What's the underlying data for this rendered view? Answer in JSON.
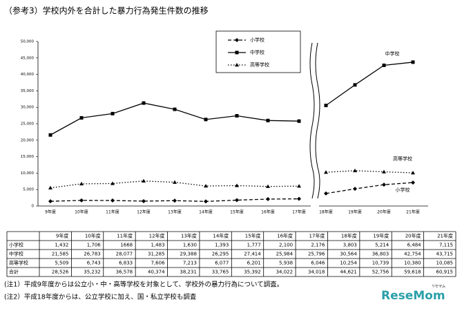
{
  "chart_data": {
    "type": "line",
    "title": "（参考3）学校内外を合計した暴力行為発生件数の推移",
    "categories": [
      "9年度",
      "10年度",
      "11年度",
      "12年度",
      "13年度",
      "14年度",
      "15年度",
      "16年度",
      "17年度",
      "18年度",
      "19年度",
      "20年度",
      "21年度"
    ],
    "x_break_after_index": 8,
    "series": [
      {
        "name": "小学校",
        "color": "#000000",
        "line_style": "dashed",
        "marker": "diamond",
        "values": [
          1432,
          1706,
          1668,
          1483,
          1630,
          1393,
          1777,
          2100,
          2176,
          3803,
          5214,
          6484,
          7115
        ],
        "value_labels": [
          "1,432",
          "1,706",
          "1668",
          "1,483",
          "1,630",
          "1,393",
          "1,777",
          "2,100",
          "2,176",
          "3,803",
          "5,214",
          "6,484",
          "7,115"
        ]
      },
      {
        "name": "中学校",
        "color": "#000000",
        "line_style": "solid",
        "marker": "square",
        "values": [
          21585,
          26783,
          28077,
          31285,
          29388,
          26295,
          27414,
          25984,
          25796,
          30564,
          36803,
          42754,
          43715
        ],
        "value_labels": [
          "21,585",
          "26,783",
          "28,077",
          "31,285",
          "29,388",
          "26,295",
          "27,414",
          "25,984",
          "25,796",
          "30,564",
          "36,803",
          "42,754",
          "43,715"
        ]
      },
      {
        "name": "高等学校",
        "color": "#000000",
        "line_style": "dotted",
        "marker": "triangle",
        "values": [
          5509,
          6743,
          6833,
          7606,
          7213,
          6077,
          6201,
          5938,
          6046,
          10254,
          10739,
          10380,
          10085
        ],
        "value_labels": [
          "5,509",
          "6,743",
          "6,833",
          "7,606",
          "7,213",
          "6,077",
          "6,201",
          "5,938",
          "6,046",
          "10,254",
          "10,739",
          "10,380",
          "10,085"
        ]
      }
    ],
    "ylim": [
      0,
      50000
    ],
    "yticks": [
      0,
      {
        "value": 5000,
        "label": "5,000"
      },
      {
        "value": 10000,
        "label": "10,000"
      },
      {
        "value": 15000,
        "label": "15,000"
      },
      {
        "value": 20000,
        "label": "20,000"
      },
      {
        "value": 25000,
        "label": "25,000"
      },
      {
        "value": 30000,
        "label": "30,000"
      },
      {
        "value": 35000,
        "label": "35,000"
      },
      {
        "value": 40000,
        "label": "40,000"
      },
      {
        "value": 45000,
        "label": "45,000"
      },
      {
        "value": 50000,
        "label": "50,000"
      }
    ],
    "grid": false,
    "legend": "top-center"
  },
  "table": {
    "total_label": "合計",
    "totals": [
      "28,526",
      "35,232",
      "36,578",
      "40,374",
      "38,231",
      "33,765",
      "35,392",
      "34,022",
      "34,018",
      "44,621",
      "52,756",
      "59,618",
      "60,915"
    ]
  },
  "notes": [
    "(注1）平成9年度からは公立小・中・高等学校を対象として、学校外の暴力行為について調査。",
    "(注2）平成18年度からは、公立学校に加え、国・私立学校も調査"
  ],
  "logo": {
    "text": "ReseMom",
    "sub": "リセマム"
  }
}
